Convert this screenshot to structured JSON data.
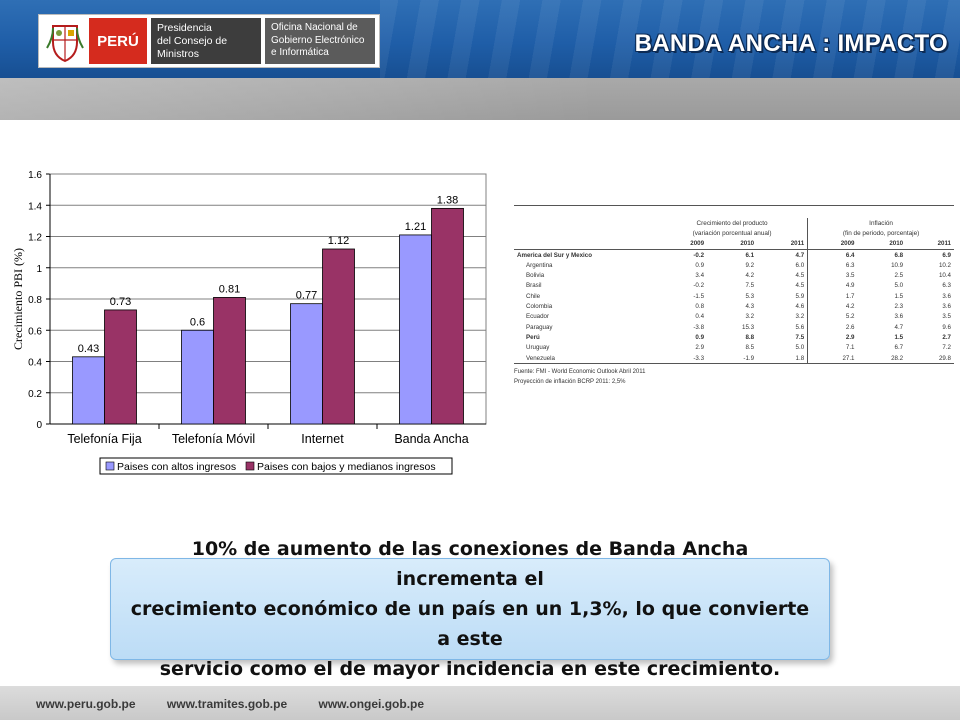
{
  "header": {
    "title": "BANDA ANCHA : IMPACTO",
    "logo_country": "PERÚ",
    "logo_pcm_line1": "Presidencia",
    "logo_pcm_line2": "del Consejo de Ministros",
    "logo_ongei_line1": "Oficina Nacional de",
    "logo_ongei_line2": "Gobierno Electrónico",
    "logo_ongei_line3": "e Informática"
  },
  "chart_data": {
    "type": "bar",
    "categories": [
      "Telefonía Fija",
      "Telefonía Móvil",
      "Internet",
      "Banda Ancha"
    ],
    "series": [
      {
        "name": "Paises con altos ingresos",
        "values": [
          0.43,
          0.6,
          0.77,
          1.21
        ],
        "color": "#9999ff"
      },
      {
        "name": "Paises con bajos y medianos ingresos",
        "values": [
          0.73,
          0.81,
          1.12,
          1.38
        ],
        "color": "#993366"
      }
    ],
    "data_labels": [
      [
        "0.43",
        "0.6",
        "0.77",
        "1.21"
      ],
      [
        "0.73",
        "0.81",
        "1.12",
        "1.38"
      ]
    ],
    "ylabel": "Crecimiento PBI (%)",
    "ylim": [
      0,
      1.6
    ],
    "yticks": [
      "0",
      "0.2",
      "0.4",
      "0.6",
      "0.8",
      "1",
      "1.2",
      "1.4",
      "1.6"
    ],
    "legend_position": "bottom"
  },
  "table": {
    "group1": "Crecimiento del producto",
    "group1_sub": "(variación porcentual anual)",
    "group2": "Inflación",
    "group2_sub": "(fin de periodo, porcentaje)",
    "years": [
      "2009",
      "2010",
      "2011",
      "2009",
      "2010",
      "2011"
    ],
    "rows": [
      {
        "name": "America del Sur y Mexico",
        "vals": [
          "-0.2",
          "6.1",
          "4.7",
          "6.4",
          "6.8",
          "6.9"
        ],
        "bold": true,
        "indent": false
      },
      {
        "name": "Argentina",
        "vals": [
          "0.9",
          "9.2",
          "6.0",
          "6.3",
          "10.9",
          "10.2"
        ],
        "bold": false,
        "indent": true
      },
      {
        "name": "Bolivia",
        "vals": [
          "3.4",
          "4.2",
          "4.5",
          "3.5",
          "2.5",
          "10.4"
        ],
        "bold": false,
        "indent": true
      },
      {
        "name": "Brasil",
        "vals": [
          "-0.2",
          "7.5",
          "4.5",
          "4.9",
          "5.0",
          "6.3"
        ],
        "bold": false,
        "indent": true
      },
      {
        "name": "Chile",
        "vals": [
          "-1.5",
          "5.3",
          "5.9",
          "1.7",
          "1.5",
          "3.6"
        ],
        "bold": false,
        "indent": true
      },
      {
        "name": "Colombia",
        "vals": [
          "0.8",
          "4.3",
          "4.6",
          "4.2",
          "2.3",
          "3.6"
        ],
        "bold": false,
        "indent": true
      },
      {
        "name": "Ecuador",
        "vals": [
          "0.4",
          "3.2",
          "3.2",
          "5.2",
          "3.6",
          "3.5"
        ],
        "bold": false,
        "indent": true
      },
      {
        "name": "Paraguay",
        "vals": [
          "-3.8",
          "15.3",
          "5.6",
          "2.6",
          "4.7",
          "9.6"
        ],
        "bold": false,
        "indent": true
      },
      {
        "name": "Perú",
        "vals": [
          "0.9",
          "8.8",
          "7.5",
          "2.9",
          "1.5",
          "2.7"
        ],
        "bold": true,
        "indent": true
      },
      {
        "name": "Uruguay",
        "vals": [
          "2.9",
          "8.5",
          "5.0",
          "7.1",
          "6.7",
          "7.2"
        ],
        "bold": false,
        "indent": true
      },
      {
        "name": "Venezuela",
        "vals": [
          "-3.3",
          "-1.9",
          "1.8",
          "27.1",
          "28.2",
          "29.8"
        ],
        "bold": false,
        "indent": true
      }
    ],
    "note1": "Fuente: FMI - World Economic Outlook Abril 2011",
    "note2": "Proyección de inflación BCRP 2011: 2,5%"
  },
  "callout": {
    "line1": "10% de aumento de las conexiones de Banda Ancha incrementa el",
    "line2": "crecimiento económico de un país en un 1,3%, lo que convierte a este",
    "line3": "servicio como el de mayor incidencia en este crecimiento."
  },
  "footer": {
    "link1": "www.peru.gob.pe",
    "link2": "www.tramites.gob.pe",
    "link3": "www.ongei.gob.pe"
  }
}
